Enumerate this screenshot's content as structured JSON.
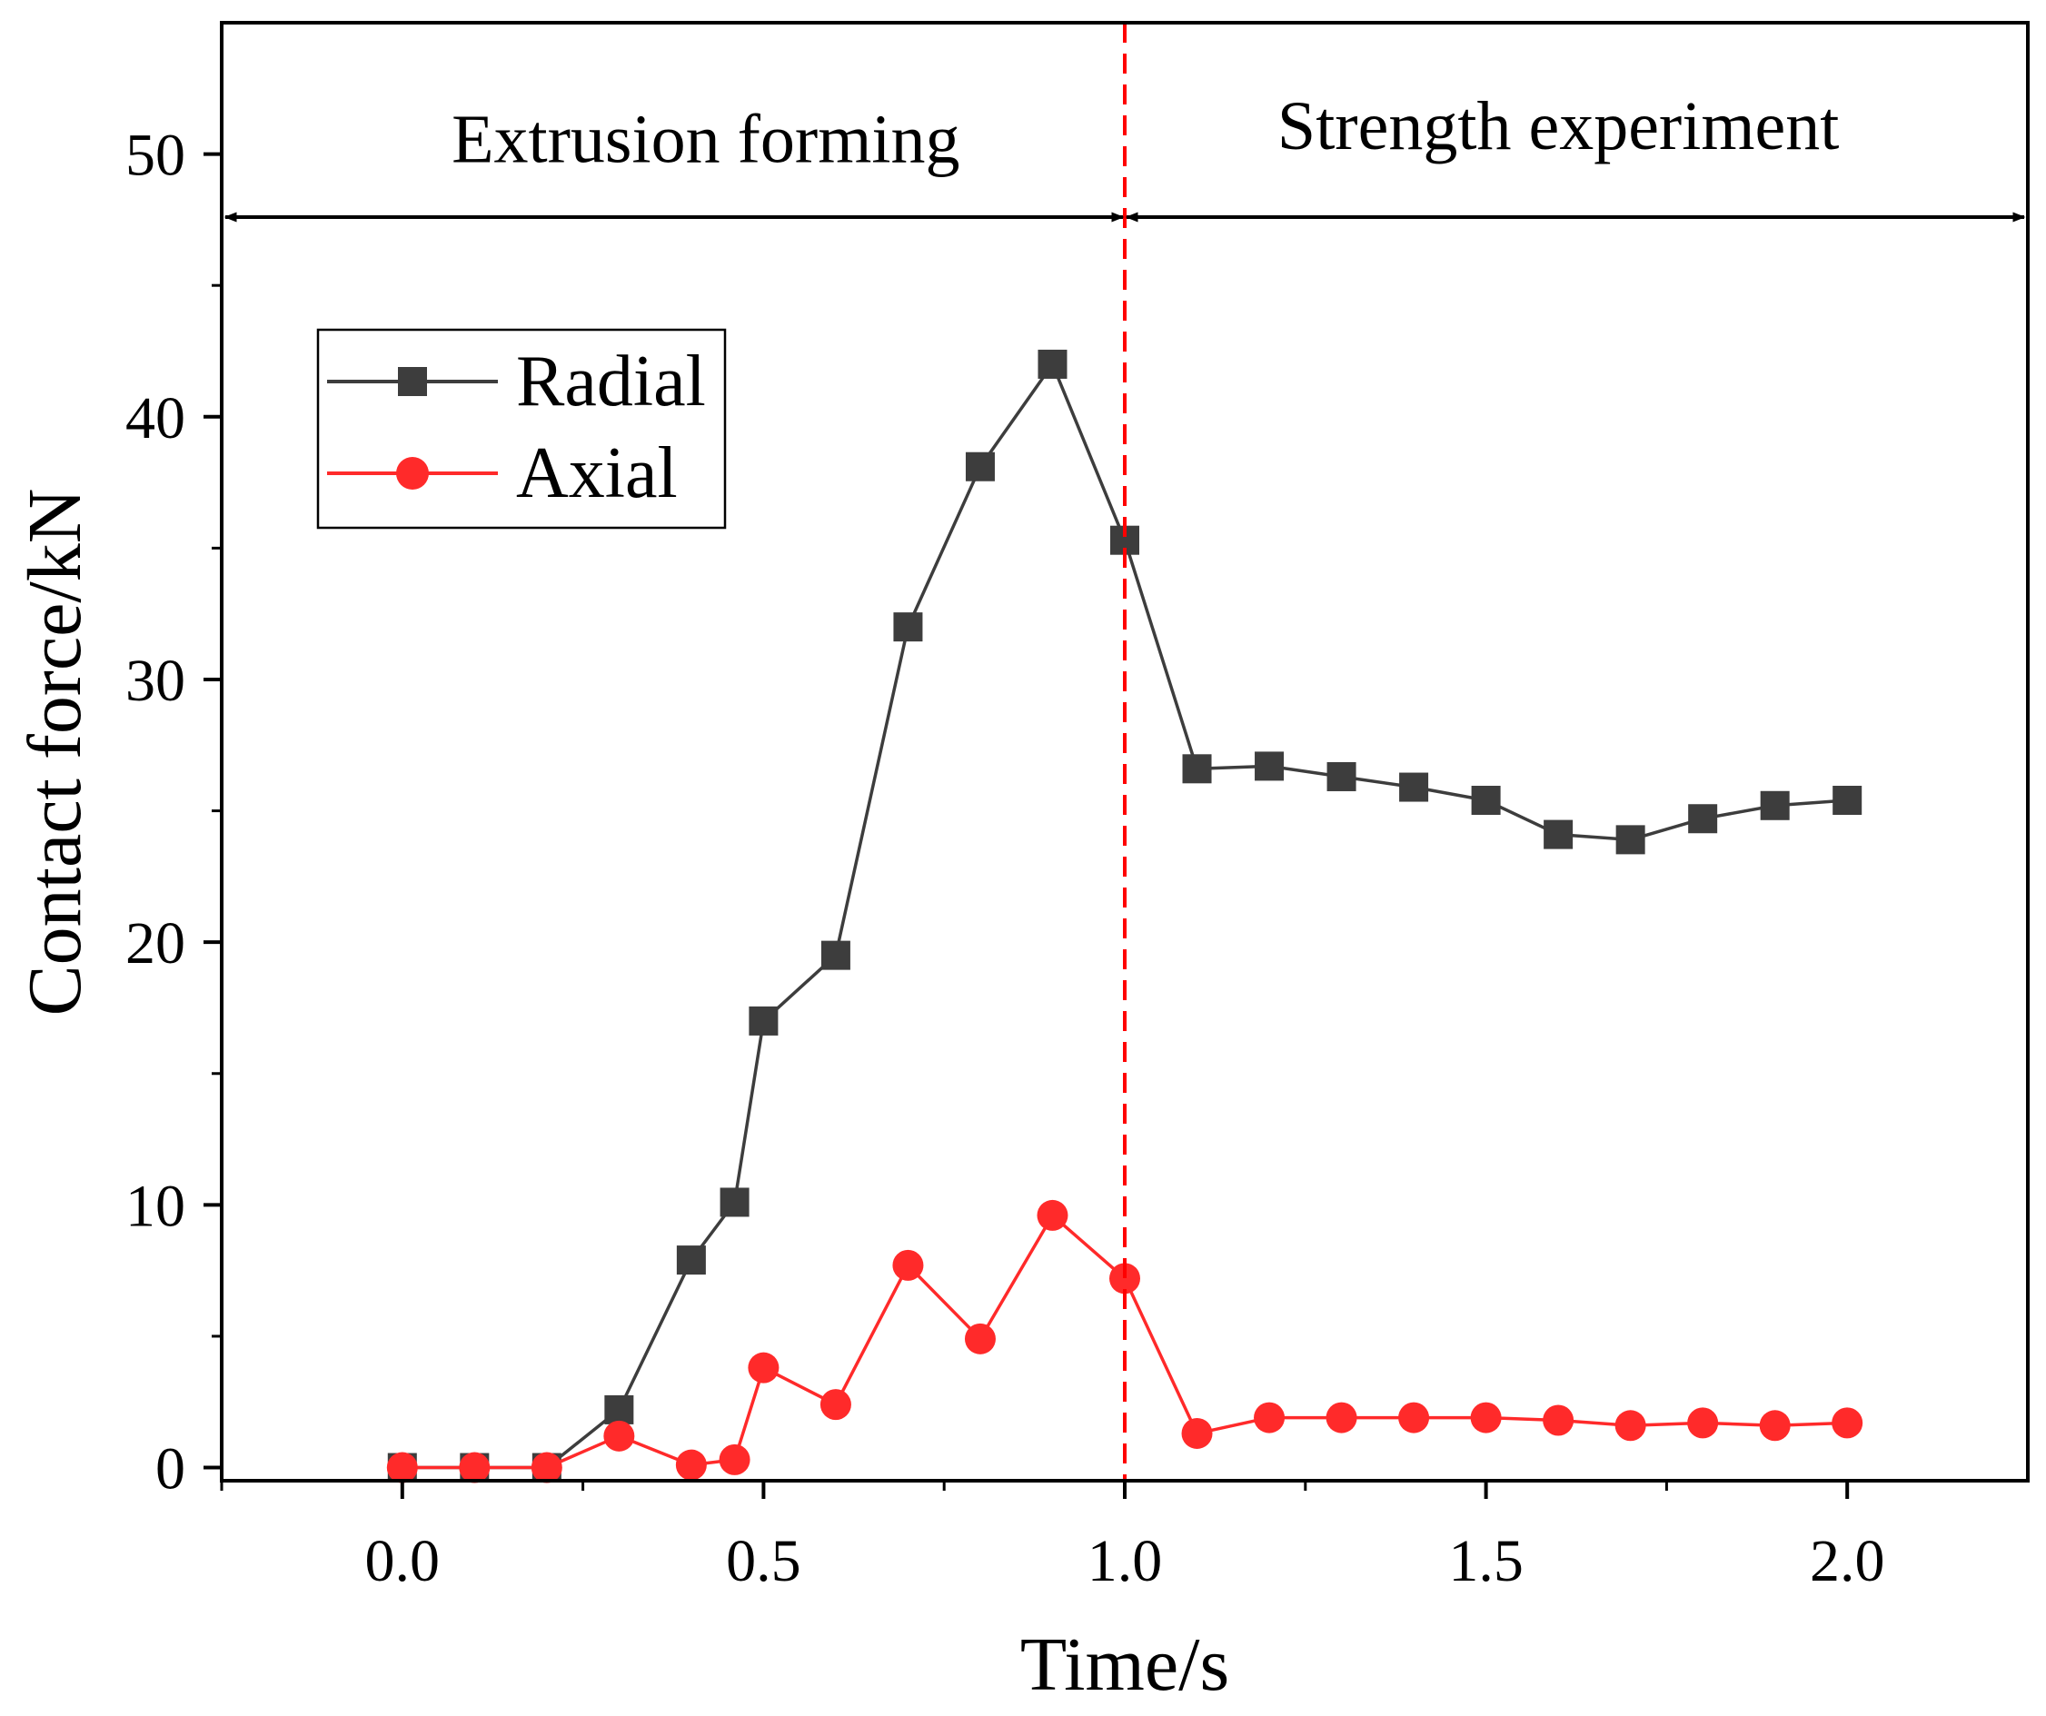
{
  "chart_data": {
    "type": "line",
    "title": "",
    "xlabel": "Time/s",
    "ylabel": "Contact force/kN",
    "xlim": [
      -0.25,
      2.25
    ],
    "ylim": [
      -0.5,
      55
    ],
    "x_ticks": [
      0.0,
      0.5,
      1.0,
      1.5,
      2.0
    ],
    "x_tick_labels": [
      "0.0",
      "0.5",
      "1.0",
      "1.5",
      "2.0"
    ],
    "y_ticks": [
      0,
      10,
      20,
      30,
      40,
      50
    ],
    "y_tick_labels": [
      "0",
      "10",
      "20",
      "30",
      "40",
      "50"
    ],
    "grid": false,
    "legend_position": "upper-left",
    "series": [
      {
        "name": "Radial",
        "color": "#3d3d3d",
        "marker": "square",
        "x": [
          0.0,
          0.1,
          0.2,
          0.3,
          0.4,
          0.46,
          0.5,
          0.6,
          0.7,
          0.8,
          0.9,
          1.0,
          1.1,
          1.2,
          1.3,
          1.4,
          1.5,
          1.6,
          1.7,
          1.8,
          1.9,
          2.0
        ],
        "values": [
          0.0,
          0.0,
          0.0,
          2.2,
          7.9,
          10.1,
          17.0,
          19.5,
          32.0,
          38.1,
          42.0,
          35.3,
          26.6,
          26.7,
          26.3,
          25.9,
          25.4,
          24.1,
          23.9,
          24.7,
          25.2,
          25.4
        ]
      },
      {
        "name": "Axial",
        "color": "#ff2a2a",
        "marker": "circle",
        "x": [
          0.0,
          0.1,
          0.2,
          0.3,
          0.4,
          0.46,
          0.5,
          0.6,
          0.7,
          0.8,
          0.9,
          1.0,
          1.1,
          1.2,
          1.3,
          1.4,
          1.5,
          1.6,
          1.7,
          1.8,
          1.9,
          2.0
        ],
        "values": [
          0.0,
          0.0,
          0.0,
          1.2,
          0.1,
          0.3,
          3.8,
          2.4,
          7.7,
          4.9,
          9.6,
          7.2,
          1.3,
          1.9,
          1.9,
          1.9,
          1.9,
          1.8,
          1.6,
          1.7,
          1.6,
          1.7
        ]
      }
    ],
    "annotations": {
      "divider_x": 1.0,
      "divider_color": "#ff0000",
      "arrow_y": 47.6,
      "phases": [
        {
          "label": "Extrusion forming",
          "x_center": 0.42,
          "y": 49.7
        },
        {
          "label": "Strength experiment",
          "x_center": 1.6,
          "y": 50.2
        }
      ]
    }
  }
}
